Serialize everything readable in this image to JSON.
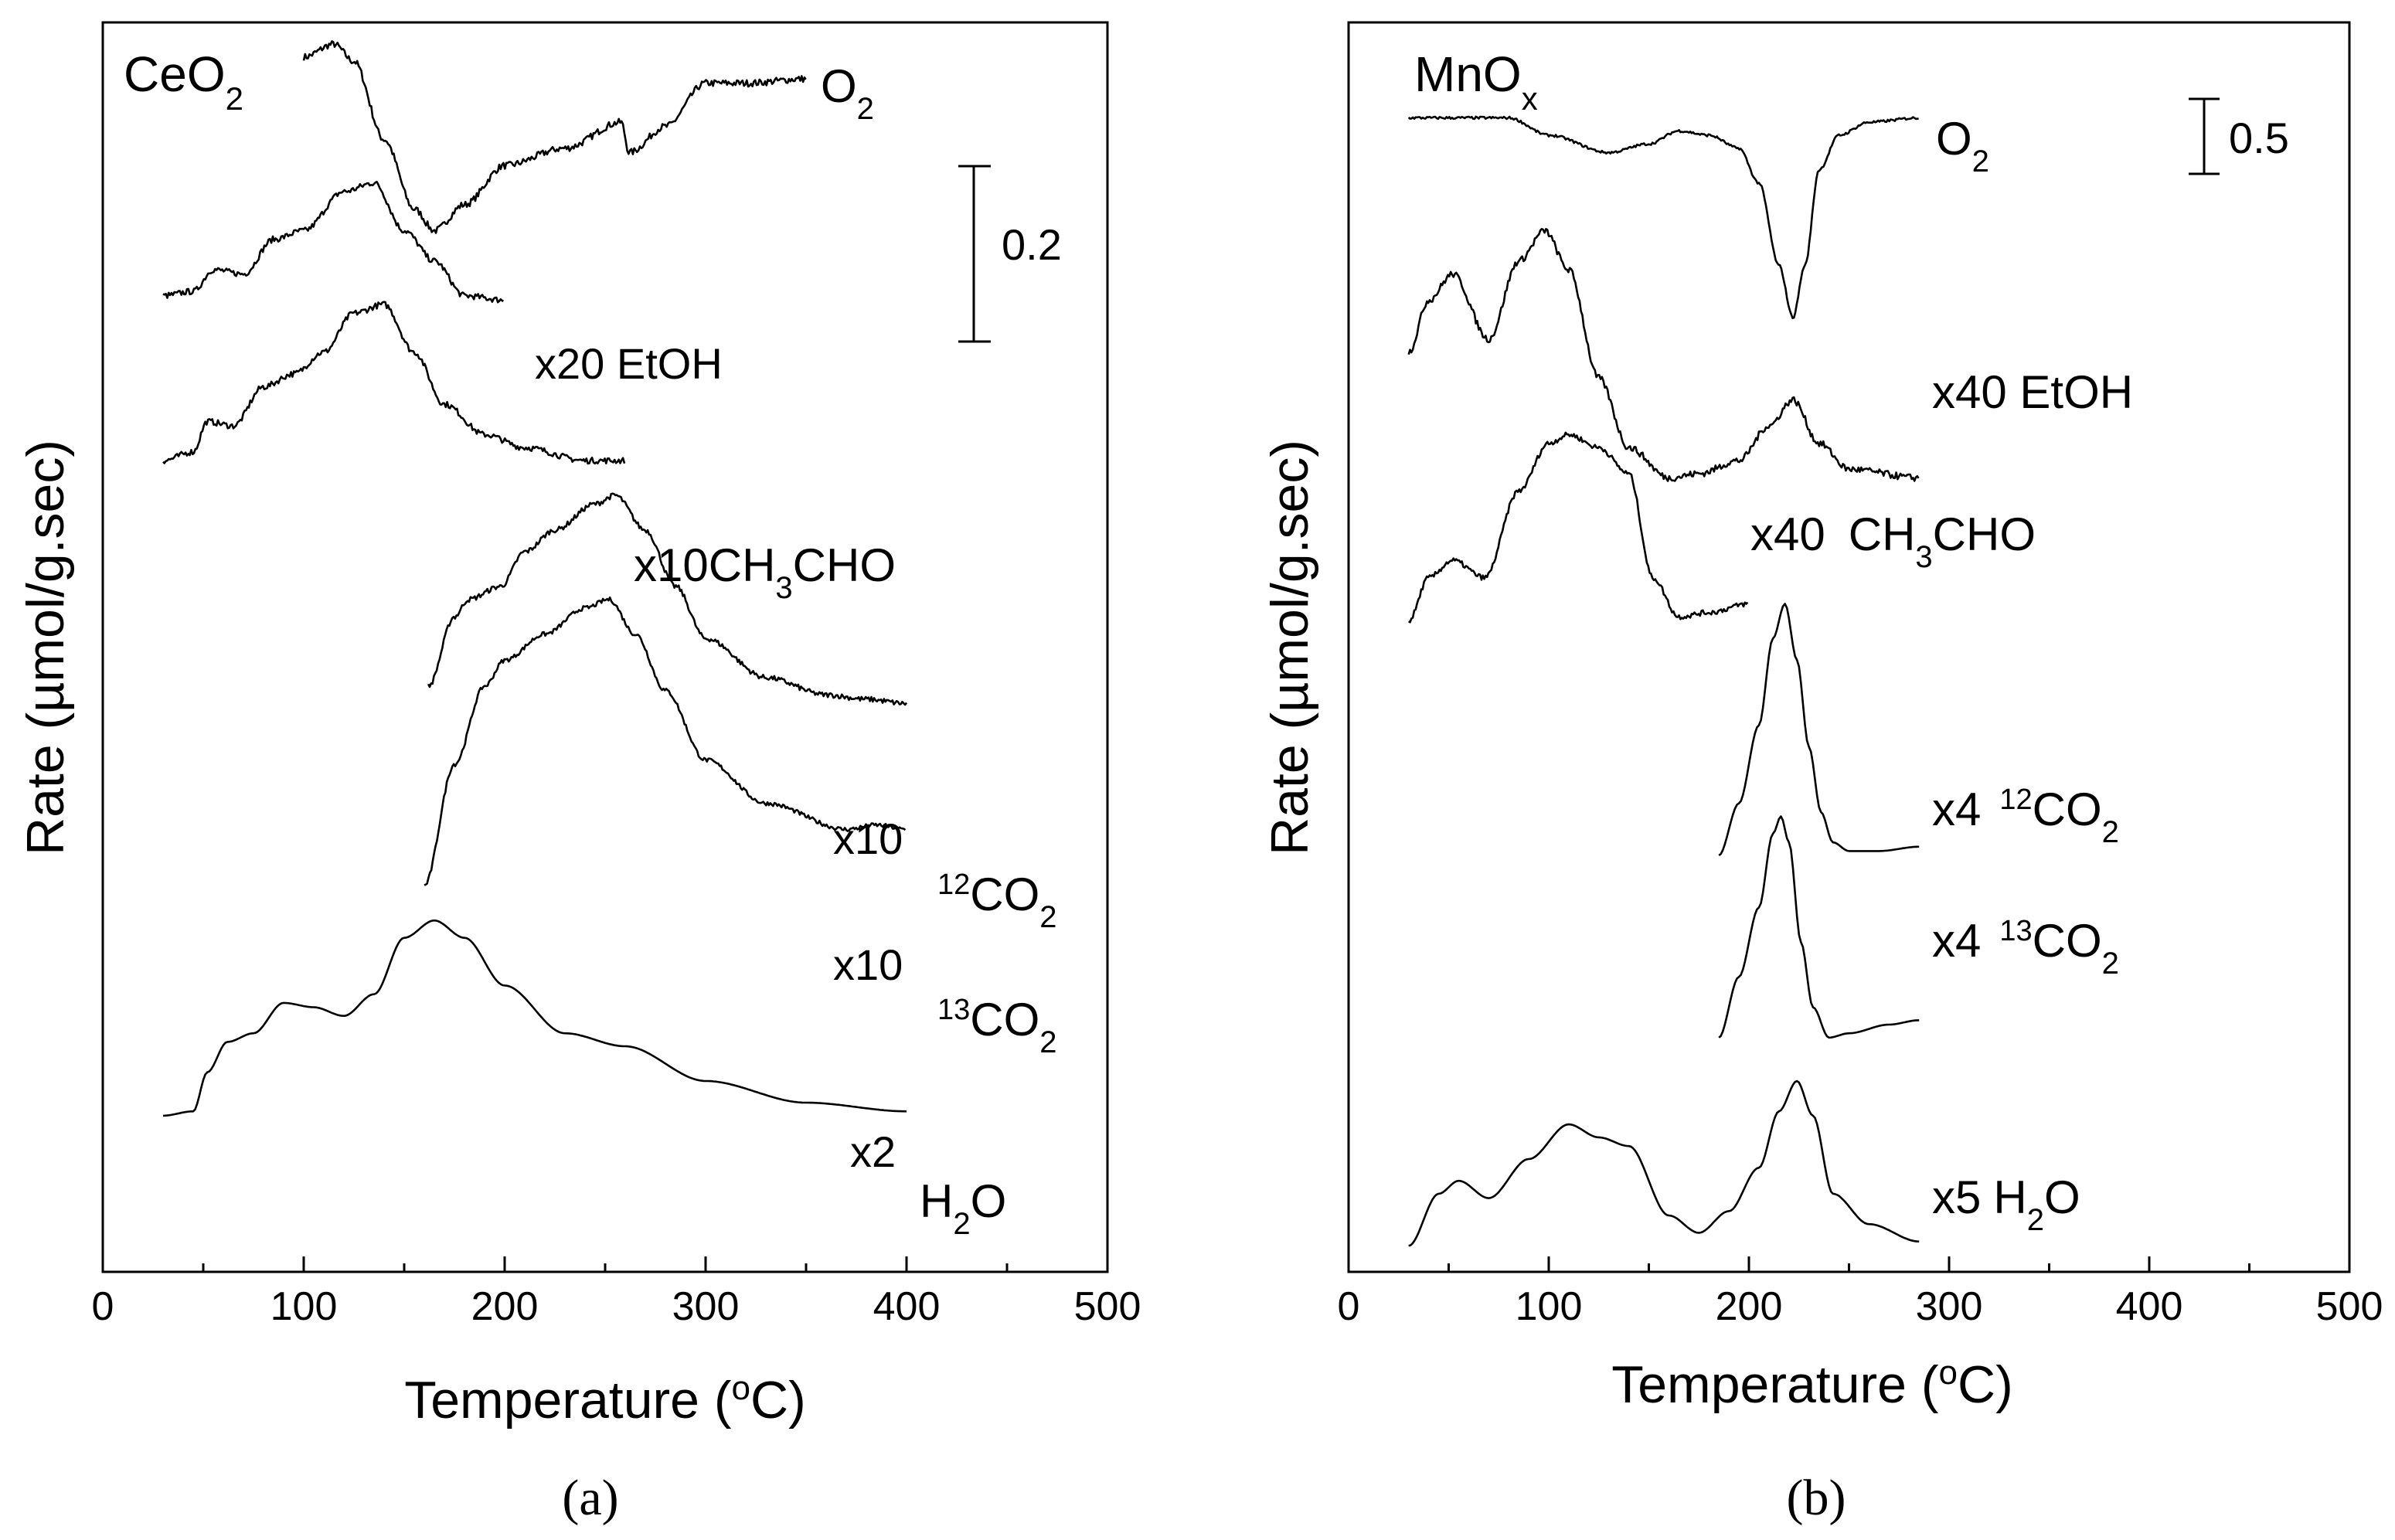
{
  "chart_data": [
    {
      "type": "line",
      "panel_caption": "(a)",
      "title_main": "CeO",
      "title_sub": "2",
      "xlabel_main": "Temperature (",
      "xlabel_sup": "o",
      "xlabel_end": "C)",
      "ylabel": "Rate (µmol/g.sec)",
      "xlim": [
        0,
        500
      ],
      "xticks": [
        "0",
        "100",
        "200",
        "300",
        "400",
        "500"
      ],
      "scale_bar_label": "0.2",
      "series": [
        {
          "name": "O2",
          "label_main": "O",
          "label_sub": "2",
          "x": [
            100,
            115,
            125,
            140,
            155,
            165,
            180,
            200,
            230,
            258,
            262,
            280,
            300,
            320,
            350
          ],
          "y": [
            14.0,
            14.15,
            13.95,
            13.05,
            12.25,
            12.0,
            12.3,
            12.75,
            12.95,
            13.25,
            12.9,
            13.2,
            13.7,
            13.7,
            13.75
          ],
          "noise": 0.08
        },
        {
          "name": "x20 EtOH",
          "label_main": "x20 EtOH",
          "x": [
            30,
            45,
            55,
            70,
            85,
            100,
            120,
            135,
            150,
            165,
            180,
            200
          ],
          "y": [
            11.25,
            11.3,
            11.55,
            11.5,
            11.9,
            12.0,
            12.45,
            12.55,
            12.0,
            11.65,
            11.25,
            11.2
          ],
          "noise": 0.07
        },
        {
          "name": "x10 CH3CHO",
          "label_pre": "x10",
          "label_main": "CH",
          "label_sub": "3",
          "label_end": "CHO",
          "x": [
            30,
            45,
            52,
            65,
            80,
            95,
            110,
            125,
            140,
            155,
            170,
            190,
            210,
            240,
            260
          ],
          "y": [
            9.35,
            9.45,
            9.8,
            9.75,
            10.2,
            10.35,
            10.6,
            11.05,
            11.15,
            10.6,
            10.0,
            9.65,
            9.5,
            9.35,
            9.35
          ],
          "noise": 0.07
        },
        {
          "name": "x10 12CO2",
          "label_pre": "x10",
          "label_sup": "12",
          "label_main": "CO",
          "label_sub": "2",
          "x": [
            162,
            175,
            182,
            198,
            210,
            225,
            245,
            255,
            270,
            285,
            300,
            330,
            360,
            380,
            400
          ],
          "y": [
            6.75,
            7.55,
            7.75,
            7.9,
            8.3,
            8.55,
            8.85,
            8.95,
            8.55,
            7.9,
            7.3,
            6.85,
            6.65,
            6.6,
            6.55
          ],
          "noise": 0.06
        },
        {
          "name": "x10 13CO2",
          "label_pre": "x10",
          "label_sup": "13",
          "label_main": "CO",
          "label_sub": "2",
          "x": [
            160,
            175,
            190,
            200,
            220,
            240,
            252,
            265,
            280,
            300,
            330,
            370,
            385,
            400
          ],
          "y": [
            4.45,
            5.85,
            6.75,
            7.05,
            7.35,
            7.65,
            7.75,
            7.35,
            6.7,
            5.9,
            5.4,
            5.1,
            5.15,
            5.1
          ],
          "noise": 0.05
        },
        {
          "name": "x2 H2O",
          "label_pre": "x2",
          "label_main": "H",
          "label_sub": "2",
          "label_end": "O",
          "x": [
            30,
            45,
            52,
            62,
            75,
            90,
            105,
            120,
            135,
            150,
            165,
            180,
            200,
            230,
            260,
            300,
            350,
            400
          ],
          "y": [
            1.8,
            1.85,
            2.3,
            2.65,
            2.75,
            3.1,
            3.05,
            2.95,
            3.2,
            3.85,
            4.05,
            3.85,
            3.3,
            2.75,
            2.6,
            2.2,
            1.95,
            1.85
          ],
          "noise": 0.0
        }
      ]
    },
    {
      "type": "line",
      "panel_caption": "(b)",
      "title_main": "MnO",
      "title_sub": "x",
      "xlabel_main": "Temperature (",
      "xlabel_sup": "o",
      "xlabel_end": "C)",
      "ylabel": "Rate (µmol/g.sec)",
      "xlim": [
        0,
        500
      ],
      "xticks": [
        "0",
        "100",
        "200",
        "300",
        "400",
        "500"
      ],
      "scale_bar_label": "0.5",
      "series": [
        {
          "name": "O2",
          "label_main": "O",
          "label_sub": "2",
          "x": [
            30,
            60,
            80,
            100,
            130,
            150,
            165,
            180,
            195,
            205,
            215,
            222,
            228,
            235,
            245,
            260,
            285
          ],
          "y": [
            13.3,
            13.3,
            13.3,
            13.1,
            12.9,
            13.0,
            13.15,
            13.1,
            12.95,
            12.55,
            11.6,
            11.0,
            11.6,
            12.7,
            13.1,
            13.25,
            13.3
          ],
          "noise": 0.03
        },
        {
          "name": "x40 EtOH",
          "label_main": "x40 EtOH",
          "x": [
            30,
            40,
            52,
            70,
            85,
            98,
            110,
            125,
            140,
            160,
            175,
            195,
            210,
            222,
            235,
            250,
            285
          ],
          "y": [
            10.6,
            11.2,
            11.5,
            10.75,
            11.65,
            12.0,
            11.55,
            10.3,
            9.5,
            9.15,
            9.2,
            9.35,
            9.75,
            10.05,
            9.55,
            9.25,
            9.15
          ],
          "noise": 0.08
        },
        {
          "name": "x40 CH3CHO",
          "label_pre": "x40",
          "label_main": "CH",
          "label_sub": "3",
          "label_end": "CHO",
          "x": [
            30,
            40,
            52,
            68,
            85,
            100,
            110,
            125,
            140,
            152,
            165,
            180,
            200
          ],
          "y": [
            7.5,
            8.0,
            8.2,
            8.0,
            9.0,
            9.55,
            9.65,
            9.5,
            9.2,
            8.0,
            7.55,
            7.6,
            7.7
          ],
          "noise": 0.06
        },
        {
          "name": "x4 12CO2",
          "label_pre": "x4",
          "label_sup": "12",
          "label_main": "CO",
          "label_sub": "2",
          "x": [
            185,
            195,
            205,
            212,
            218,
            224,
            230,
            236,
            242,
            250,
            265,
            285
          ],
          "y": [
            4.8,
            5.4,
            6.3,
            7.3,
            7.7,
            7.05,
            6.05,
            5.3,
            4.95,
            4.85,
            4.85,
            4.9
          ],
          "noise": 0.0
        },
        {
          "name": "x4 13CO2",
          "label_pre": "x4",
          "label_sup": "13",
          "label_main": "CO",
          "label_sub": "2",
          "x": [
            185,
            195,
            205,
            212,
            216,
            220,
            226,
            232,
            240,
            250,
            270,
            285
          ],
          "y": [
            2.7,
            3.4,
            4.2,
            5.05,
            5.25,
            4.95,
            3.8,
            3.05,
            2.7,
            2.75,
            2.85,
            2.9
          ],
          "noise": 0.0
        },
        {
          "name": "x5 H2O",
          "label_pre": "x5",
          "label_main": "H",
          "label_sub": "2",
          "label_end": "O",
          "x": [
            30,
            45,
            55,
            70,
            90,
            110,
            125,
            140,
            160,
            175,
            190,
            205,
            215,
            224,
            232,
            242,
            260,
            285
          ],
          "y": [
            0.3,
            0.9,
            1.05,
            0.85,
            1.3,
            1.7,
            1.55,
            1.45,
            0.65,
            0.45,
            0.7,
            1.2,
            1.85,
            2.2,
            1.8,
            0.9,
            0.55,
            0.35
          ],
          "noise": 0.0
        }
      ]
    }
  ]
}
